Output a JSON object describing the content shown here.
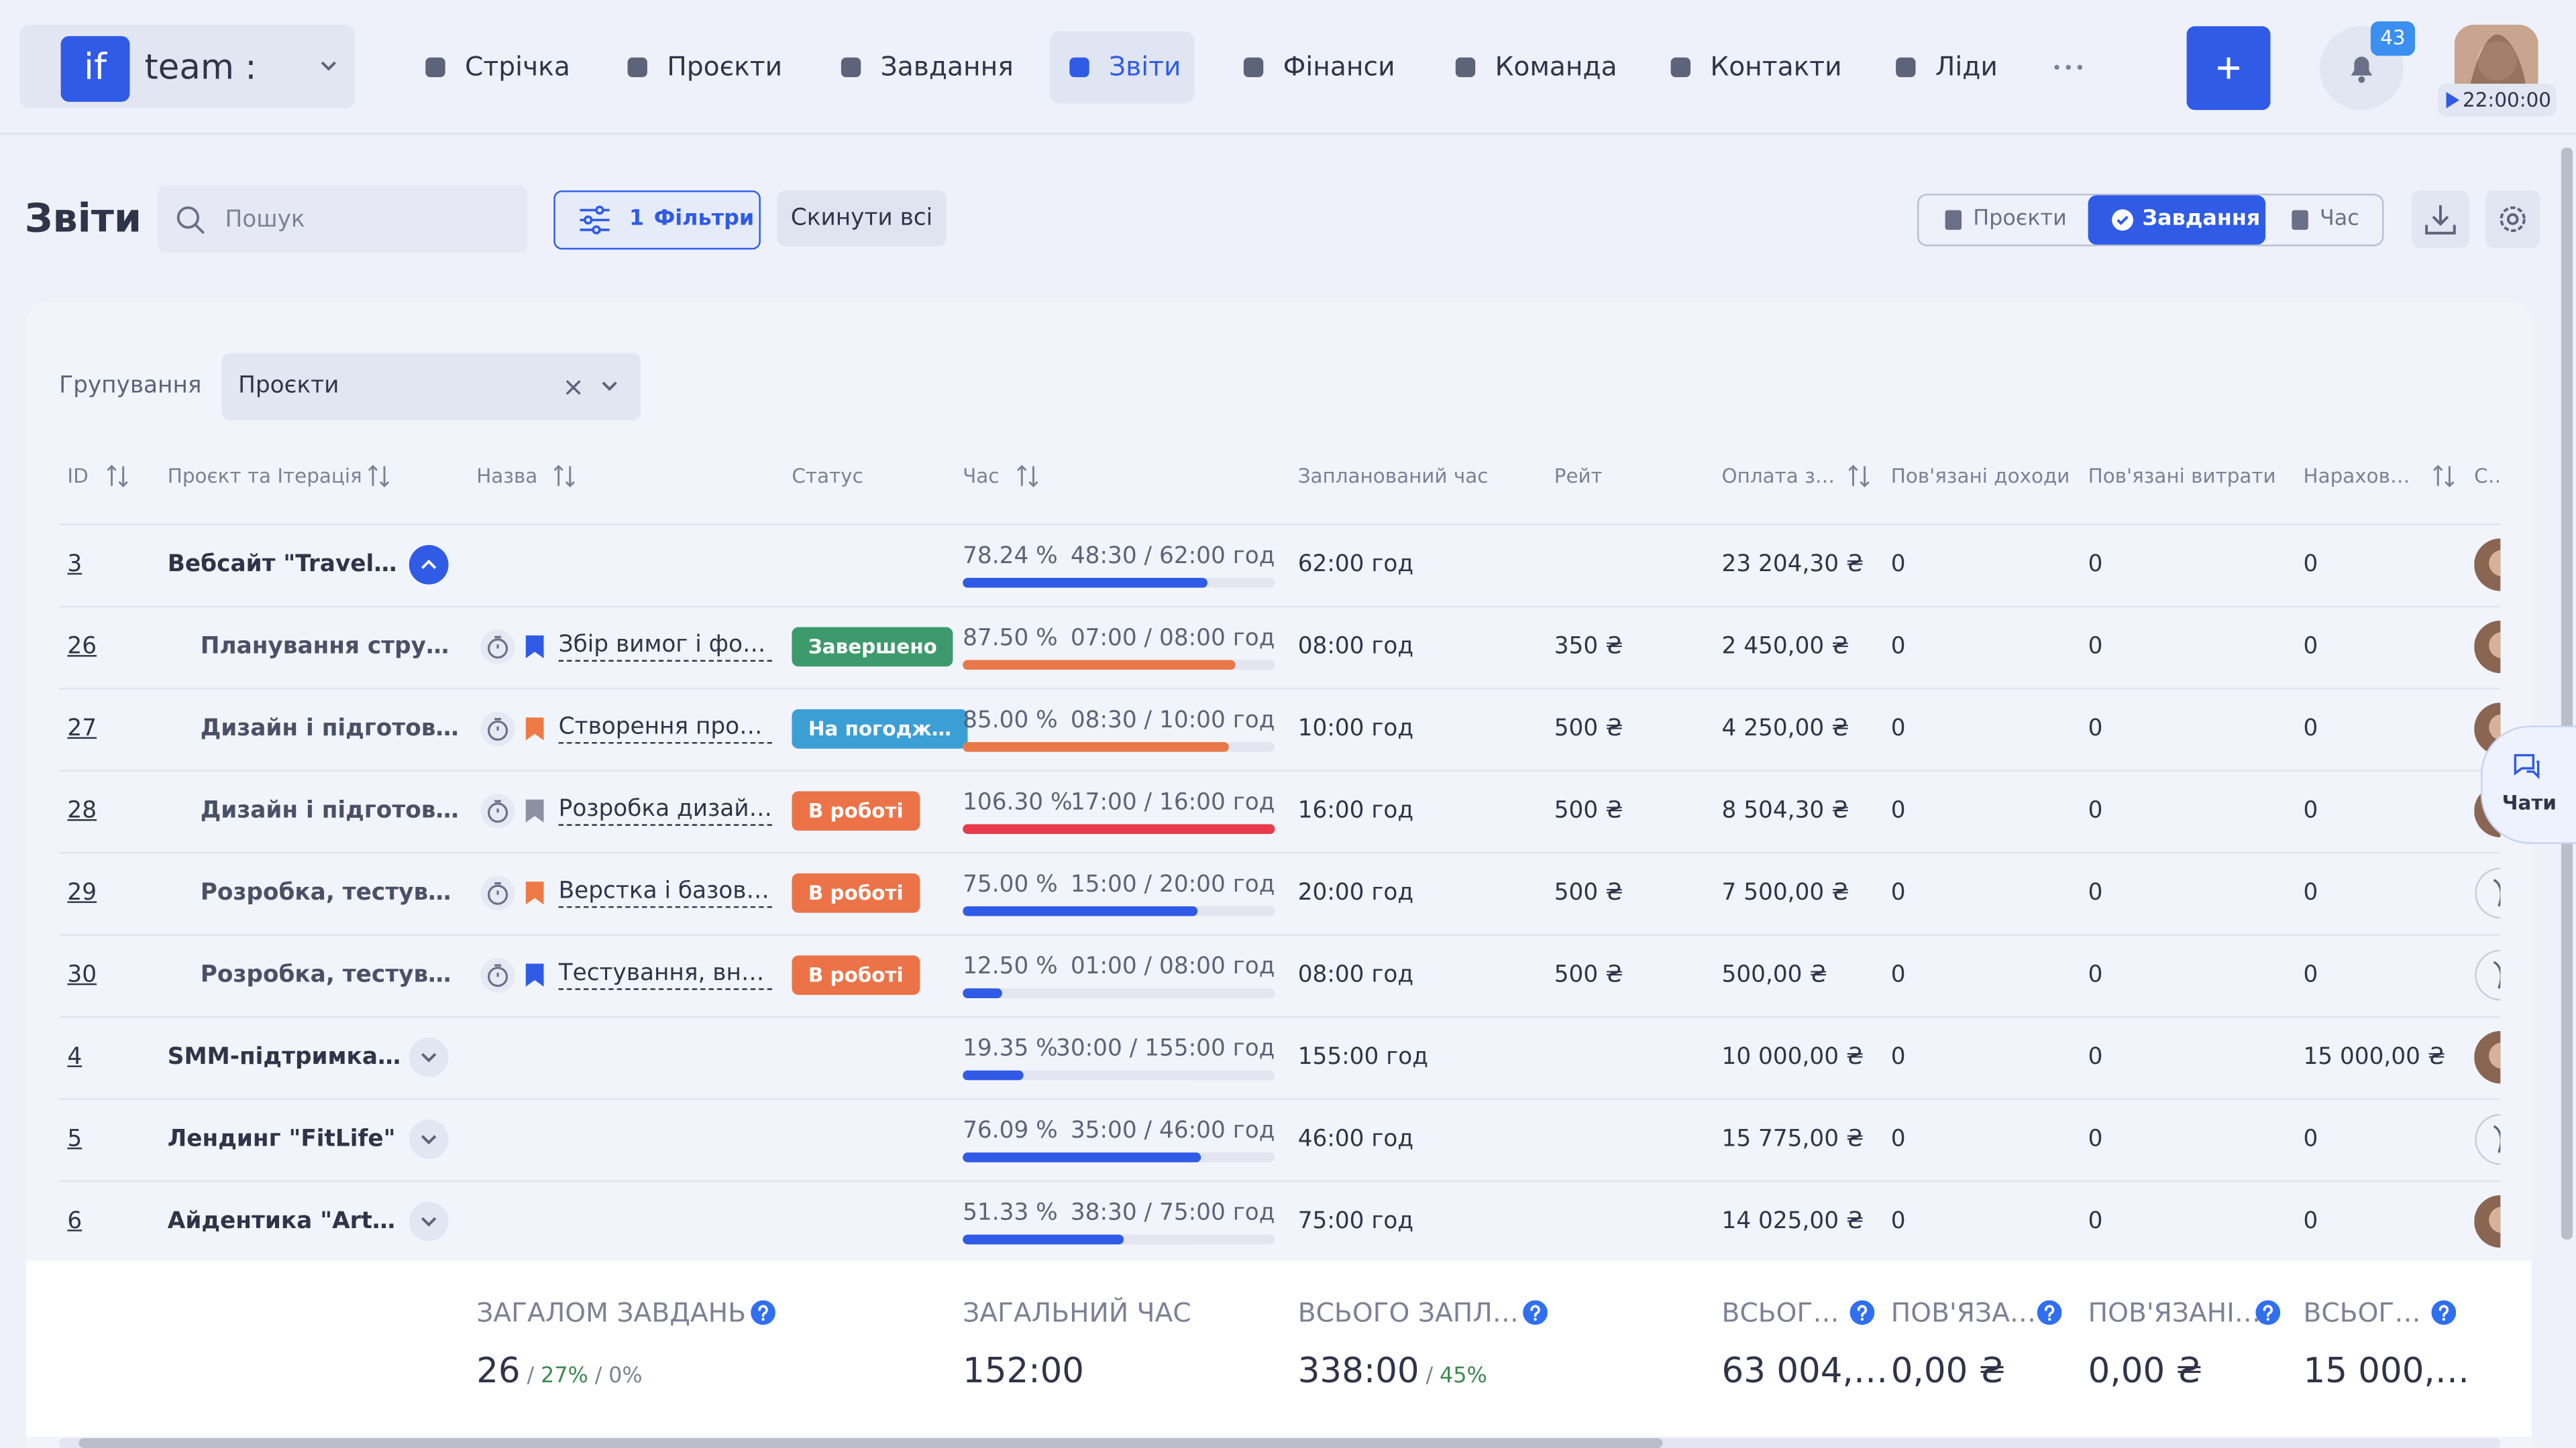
{
  "header": {
    "logo": "if",
    "workspace": "team :",
    "nav": [
      "Стрічка",
      "Проєкти",
      "Завдання",
      "Звіти",
      "Фінанси",
      "Команда",
      "Контакти",
      "Ліди"
    ],
    "notifications": "43",
    "timer": "22:00:00"
  },
  "toolbar": {
    "title": "Звіти",
    "search_placeholder": "Пошук",
    "filters_count": "1",
    "filters": "Фільтри",
    "reset": "Скинути всі",
    "views": [
      "Проєкти",
      "Завдання",
      "Час"
    ]
  },
  "grouping": {
    "label": "Групування",
    "value": "Проєкти"
  },
  "table": {
    "columns": [
      "ID",
      "Проєкт та Ітерація",
      "Назва",
      "Статус",
      "Час",
      "Запланований час",
      "Рейт",
      "Оплата з…",
      "Пов'язані доходи",
      "Пов'язані витрати",
      "Нарахова…",
      "Сп"
    ],
    "rows": [
      {
        "id": "3",
        "project": "Вебсайт \"TravelUA\"",
        "expanded": true,
        "percent": {
          "value": 78.24,
          "label": "78.24 %"
        },
        "time": "48:30 / 62:00 год",
        "bar_color": "#2f5be6",
        "planned": "62:00 год",
        "pay": "23 204,30 ₴",
        "income": "0",
        "expenses": "0",
        "accrued": "0"
      },
      {
        "id": "26",
        "project": "Планування структу…",
        "flag_color": "#2f5be6",
        "name": "Збір вимог і форм…",
        "status": {
          "label": "Завершено",
          "color": "#3d9a6c"
        },
        "percent": {
          "value": 87.5,
          "label": "87.50 %"
        },
        "time": "07:00 / 08:00 год",
        "bar_color": "#e8784a",
        "planned": "08:00 год",
        "rate": "350 ₴",
        "pay": "2 450,00 ₴",
        "income": "0",
        "expenses": "0",
        "accrued": "0"
      },
      {
        "id": "27",
        "project": "Дизайн і підготовка …",
        "flag_color": "#ee7a45",
        "name": "Створення прото…",
        "status": {
          "label": "На погодж…",
          "color": "#3b9fd6"
        },
        "percent": {
          "value": 85,
          "label": "85.00 %"
        },
        "time": "08:30 / 10:00 год",
        "bar_color": "#e8784a",
        "planned": "10:00 год",
        "rate": "500 ₴",
        "pay": "4 250,00 ₴",
        "income": "0",
        "expenses": "0",
        "accrued": "0"
      },
      {
        "id": "28",
        "project": "Дизайн і підготовка …",
        "flag_color": "#8c90a3",
        "name": "Розробка дизайн…",
        "status": {
          "label": "В роботі",
          "color": "#ec7347"
        },
        "percent": {
          "value": 106.3,
          "label": "106.30 %"
        },
        "time": "17:00 / 16:00 год",
        "bar_color": "#e83a4a",
        "planned": "16:00 год",
        "rate": "500 ₴",
        "pay": "8 504,30 ₴",
        "income": "0",
        "expenses": "0",
        "accrued": "0"
      },
      {
        "id": "29",
        "project": "Розробка, тестуван…",
        "flag_color": "#ee7a45",
        "name": "Верстка і базове …",
        "status": {
          "label": "В роботі",
          "color": "#ec7347"
        },
        "percent": {
          "value": 75,
          "label": "75.00 %"
        },
        "time": "15:00 / 20:00 год",
        "bar_color": "#2f5be6",
        "planned": "20:00 год",
        "rate": "500 ₴",
        "pay": "7 500,00 ₴",
        "income": "0",
        "expenses": "0",
        "accrued": "0"
      },
      {
        "id": "30",
        "project": "Розробка, тестуван…",
        "flag_color": "#2f5be6",
        "name": "Тестування, внес…",
        "status": {
          "label": "В роботі",
          "color": "#ec7347"
        },
        "percent": {
          "value": 12.5,
          "label": "12.50 %"
        },
        "time": "01:00 / 08:00 год",
        "bar_color": "#2f5be6",
        "planned": "08:00 год",
        "rate": "500 ₴",
        "pay": "500,00 ₴",
        "income": "0",
        "expenses": "0",
        "accrued": "0"
      },
      {
        "id": "4",
        "project": "SMM-підтримка \"С…",
        "expanded": false,
        "percent": {
          "value": 19.35,
          "label": "19.35 %"
        },
        "time": "30:00 / 155:00 год",
        "bar_color": "#2f5be6",
        "planned": "155:00 год",
        "pay": "10 000,00 ₴",
        "income": "0",
        "expenses": "0",
        "accrued": "15 000,00 ₴"
      },
      {
        "id": "5",
        "project": "Лендинг \"FitLife\"",
        "expanded": false,
        "percent": {
          "value": 76.09,
          "label": "76.09 %"
        },
        "time": "35:00 / 46:00 год",
        "bar_color": "#2f5be6",
        "planned": "46:00 год",
        "pay": "15 775,00 ₴",
        "income": "0",
        "expenses": "0",
        "accrued": "0"
      },
      {
        "id": "6",
        "project": "Айдентика \"ArtSp…",
        "expanded": false,
        "percent": {
          "value": 51.33,
          "label": "51.33 %"
        },
        "time": "38:30 / 75:00 год",
        "bar_color": "#2f5be6",
        "planned": "75:00 год",
        "pay": "14 025,00 ₴",
        "income": "0",
        "expenses": "0",
        "accrued": "0"
      }
    ]
  },
  "totals": [
    {
      "label": "ЗАГАЛОМ ЗАВДАНЬ",
      "value": "26",
      "notes": [
        {
          "text": "/",
          "color": "#7c8196"
        },
        {
          "text": "27%",
          "color": "#3d8a4f"
        },
        {
          "text": "/",
          "color": "#7c8196"
        },
        {
          "text": "0%",
          "color": "#7c8196"
        }
      ]
    },
    {
      "label": "ЗАГАЛЬНИЙ ЧАС",
      "value": "152:00"
    },
    {
      "label": "ВСЬОГО ЗАПЛ…",
      "value": "338:00",
      "notes": [
        {
          "text": "/",
          "color": "#7c8196"
        },
        {
          "text": "45%",
          "color": "#3d8a4f"
        }
      ]
    },
    {
      "label": "ВСЬОГ…",
      "value": "63 004,…"
    },
    {
      "label": "ПОВ'ЯЗА…",
      "value": "0,00 ₴"
    },
    {
      "label": "ПОВ'ЯЗАНІ…",
      "value": "0,00 ₴"
    },
    {
      "label": "ВСЬОГ…",
      "value": "15 000,…"
    }
  ],
  "chat": "Чати"
}
